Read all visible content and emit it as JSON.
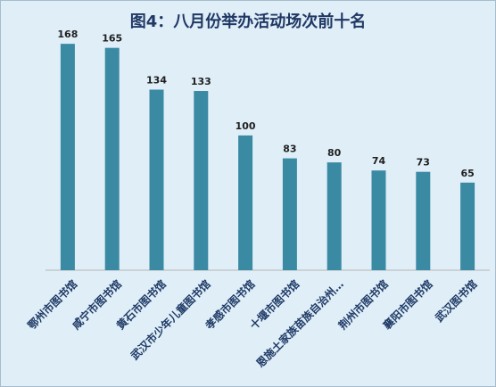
{
  "chart_data": {
    "type": "bar",
    "title": "图4：八月份举办活动场次前十名",
    "categories": [
      "鄂州市图书馆",
      "咸宁市图书馆",
      "黄石市图书馆",
      "武汉市少年儿童图书馆",
      "孝感市图书馆",
      "十堰市图书馆",
      "恩施土家族苗族自治州…",
      "荆州市图书馆",
      "襄阳市图书馆",
      "武汉图书馆"
    ],
    "values": [
      168,
      165,
      134,
      133,
      100,
      83,
      80,
      74,
      73,
      65
    ],
    "xlabel": "",
    "ylabel": "",
    "ylim": [
      0,
      180
    ],
    "grid": false,
    "legend": "none",
    "bar_color": "#3b8aa3",
    "background_color": "#dfeef7"
  }
}
